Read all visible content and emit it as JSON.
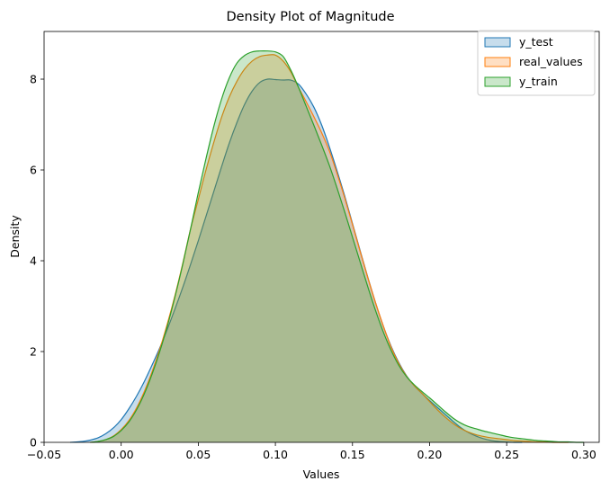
{
  "chart_data": {
    "type": "area",
    "title": "Density Plot of Magnitude",
    "xlabel": "Values",
    "ylabel": "Density",
    "xlim": [
      -0.05,
      0.31
    ],
    "ylim": [
      0,
      9.05
    ],
    "x_ticks": [
      -0.05,
      0.0,
      0.05,
      0.1,
      0.15,
      0.2,
      0.25,
      0.3
    ],
    "x_tick_labels": [
      "−0.05",
      "0.00",
      "0.05",
      "0.10",
      "0.15",
      "0.20",
      "0.25",
      "0.30"
    ],
    "y_ticks": [
      0,
      2,
      4,
      6,
      8
    ],
    "y_tick_labels": [
      "0",
      "2",
      "4",
      "6",
      "8"
    ],
    "grid": false,
    "legend_position": "top-right",
    "fill_alpha": 0.25,
    "series": [
      {
        "name": "y_test",
        "color": "#1f77b4",
        "x": [
          -0.033,
          -0.025,
          -0.02,
          -0.015,
          -0.01,
          -0.005,
          0.0,
          0.005,
          0.01,
          0.015,
          0.02,
          0.025,
          0.03,
          0.035,
          0.04,
          0.045,
          0.05,
          0.055,
          0.06,
          0.065,
          0.07,
          0.075,
          0.08,
          0.085,
          0.09,
          0.095,
          0.1,
          0.105,
          0.11,
          0.115,
          0.12,
          0.125,
          0.13,
          0.135,
          0.14,
          0.145,
          0.15,
          0.155,
          0.16,
          0.165,
          0.17,
          0.175,
          0.18,
          0.185,
          0.19,
          0.195,
          0.2,
          0.205,
          0.21,
          0.215,
          0.22,
          0.225,
          0.23,
          0.235,
          0.24,
          0.245,
          0.25,
          0.255,
          0.26
        ],
        "y": [
          0.0,
          0.02,
          0.05,
          0.1,
          0.19,
          0.32,
          0.5,
          0.74,
          1.02,
          1.34,
          1.7,
          2.08,
          2.5,
          2.95,
          3.42,
          3.92,
          4.44,
          4.98,
          5.52,
          6.06,
          6.58,
          7.04,
          7.44,
          7.74,
          7.93,
          8.0,
          7.99,
          7.98,
          7.98,
          7.89,
          7.67,
          7.38,
          6.99,
          6.51,
          5.98,
          5.42,
          4.82,
          4.22,
          3.63,
          3.07,
          2.56,
          2.12,
          1.76,
          1.47,
          1.25,
          1.08,
          0.92,
          0.77,
          0.62,
          0.47,
          0.33,
          0.22,
          0.14,
          0.08,
          0.04,
          0.02,
          0.01,
          0.0,
          0.0
        ]
      },
      {
        "name": "real_values",
        "color": "#ff7f0e",
        "x": [
          -0.02,
          -0.015,
          -0.01,
          -0.005,
          0.0,
          0.005,
          0.01,
          0.015,
          0.02,
          0.025,
          0.03,
          0.035,
          0.04,
          0.045,
          0.05,
          0.055,
          0.06,
          0.065,
          0.07,
          0.075,
          0.08,
          0.085,
          0.09,
          0.095,
          0.1,
          0.105,
          0.11,
          0.115,
          0.12,
          0.125,
          0.13,
          0.135,
          0.14,
          0.145,
          0.15,
          0.155,
          0.16,
          0.165,
          0.17,
          0.175,
          0.18,
          0.185,
          0.19,
          0.195,
          0.2,
          0.205,
          0.21,
          0.215,
          0.22,
          0.225,
          0.23,
          0.235,
          0.24,
          0.245,
          0.25,
          0.255,
          0.26,
          0.265,
          0.27,
          0.275,
          0.28,
          0.285,
          0.29
        ],
        "y": [
          0.0,
          0.02,
          0.06,
          0.14,
          0.28,
          0.48,
          0.76,
          1.12,
          1.55,
          2.05,
          2.62,
          3.25,
          3.95,
          4.7,
          5.35,
          6.0,
          6.6,
          7.15,
          7.6,
          7.95,
          8.22,
          8.4,
          8.5,
          8.53,
          8.53,
          8.4,
          8.16,
          7.82,
          7.5,
          7.17,
          6.82,
          6.42,
          5.92,
          5.38,
          4.8,
          4.2,
          3.62,
          3.07,
          2.56,
          2.1,
          1.74,
          1.46,
          1.25,
          1.08,
          0.9,
          0.72,
          0.56,
          0.42,
          0.31,
          0.23,
          0.17,
          0.13,
          0.1,
          0.08,
          0.06,
          0.04,
          0.03,
          0.02,
          0.01,
          0.01,
          0.0,
          0.0,
          0.0
        ]
      },
      {
        "name": "y_train",
        "color": "#2ca02c",
        "x": [
          -0.02,
          -0.015,
          -0.01,
          -0.005,
          0.0,
          0.005,
          0.01,
          0.015,
          0.02,
          0.025,
          0.03,
          0.035,
          0.04,
          0.045,
          0.05,
          0.055,
          0.06,
          0.065,
          0.07,
          0.075,
          0.08,
          0.085,
          0.09,
          0.095,
          0.1,
          0.105,
          0.11,
          0.115,
          0.12,
          0.125,
          0.13,
          0.135,
          0.14,
          0.145,
          0.15,
          0.155,
          0.16,
          0.165,
          0.17,
          0.175,
          0.18,
          0.185,
          0.19,
          0.195,
          0.2,
          0.205,
          0.21,
          0.215,
          0.22,
          0.225,
          0.23,
          0.235,
          0.24,
          0.245,
          0.25,
          0.255,
          0.26,
          0.265,
          0.27,
          0.275,
          0.28,
          0.285,
          0.29,
          0.295,
          0.3
        ],
        "y": [
          0.0,
          0.02,
          0.06,
          0.13,
          0.26,
          0.45,
          0.72,
          1.07,
          1.5,
          2.0,
          2.57,
          3.22,
          3.93,
          4.7,
          5.5,
          6.25,
          6.95,
          7.55,
          8.02,
          8.35,
          8.52,
          8.6,
          8.62,
          8.62,
          8.6,
          8.5,
          8.2,
          7.82,
          7.4,
          6.98,
          6.55,
          6.1,
          5.6,
          5.07,
          4.52,
          3.97,
          3.42,
          2.9,
          2.43,
          2.03,
          1.7,
          1.45,
          1.27,
          1.12,
          0.98,
          0.83,
          0.68,
          0.54,
          0.43,
          0.35,
          0.3,
          0.25,
          0.21,
          0.17,
          0.13,
          0.1,
          0.08,
          0.06,
          0.04,
          0.03,
          0.02,
          0.01,
          0.01,
          0.0,
          0.0
        ]
      }
    ]
  }
}
